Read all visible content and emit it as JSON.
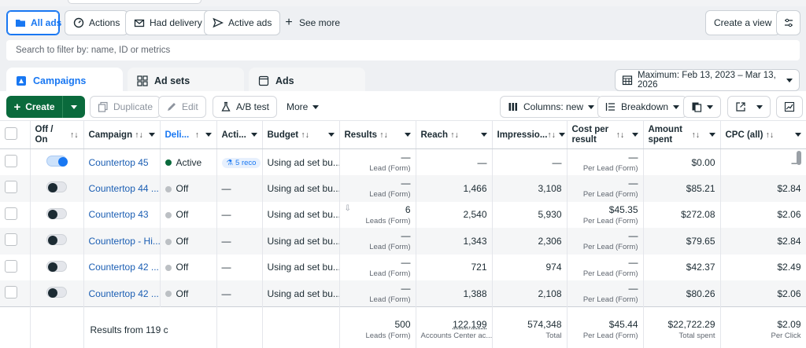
{
  "filters": {
    "all_ads": "All ads",
    "actions": "Actions",
    "had_delivery": "Had delivery",
    "active_ads": "Active ads",
    "see_more": "See more",
    "create_view": "Create a view"
  },
  "search": {
    "placeholder": "Search to filter by: name, ID or metrics"
  },
  "tabs": {
    "campaigns": "Campaigns",
    "ad_sets": "Ad sets",
    "ads": "Ads"
  },
  "date_range": "Maximum: Feb 13, 2023 – Mar 13, 2026",
  "toolbar": {
    "create": "Create",
    "duplicate": "Duplicate",
    "edit": "Edit",
    "ab_test": "A/B test",
    "more": "More",
    "columns": "Columns: new",
    "breakdown": "Breakdown"
  },
  "table": {
    "headers": {
      "off_on": "Off / On",
      "campaign": "Campaign",
      "delivery": "Deli...",
      "actions": "Acti...",
      "budget": "Budget",
      "results": "Results",
      "reach": "Reach",
      "impressions": "Impressio...",
      "cost_per_result_1": "Cost per",
      "cost_per_result_2": "result",
      "amount_spent_1": "Amount",
      "amount_spent_2": "spent",
      "cpc": "CPC (all)"
    },
    "rows": [
      {
        "campaign": "Countertop 45",
        "delivery": "Active",
        "actions": "5 reco",
        "budget": "Using ad set bu...",
        "results": "—",
        "results_sub": "Lead (Form)",
        "reach": "—",
        "impressions": "—",
        "cost": "—",
        "cost_sub": "Per Lead (Form)",
        "spent": "$0.00",
        "cpc": "—"
      },
      {
        "campaign": "Countertop 44 ...",
        "delivery": "Off",
        "actions": "—",
        "budget": "Using ad set bu...",
        "results": "—",
        "results_sub": "Lead (Form)",
        "reach": "1,466",
        "impressions": "3,108",
        "cost": "—",
        "cost_sub": "Per Lead (Form)",
        "spent": "$85.21",
        "cpc": "$2.84"
      },
      {
        "campaign": "Countertop 43",
        "delivery": "Off",
        "actions": "—",
        "budget": "Using ad set bu...",
        "results": "6",
        "results_sub": "Leads (Form)",
        "reach": "2,540",
        "impressions": "5,930",
        "cost": "$45.35",
        "cost_sub": "Per Lead (Form)",
        "spent": "$272.08",
        "cpc": "$2.06"
      },
      {
        "campaign": "Countertop - Hi...",
        "delivery": "Off",
        "actions": "—",
        "budget": "Using ad set bu...",
        "results": "—",
        "results_sub": "Lead (Form)",
        "reach": "1,343",
        "impressions": "2,306",
        "cost": "—",
        "cost_sub": "Per Lead (Form)",
        "spent": "$79.65",
        "cpc": "$2.84"
      },
      {
        "campaign": "Countertop 42 ...",
        "delivery": "Off",
        "actions": "—",
        "budget": "Using ad set bu...",
        "results": "—",
        "results_sub": "Lead (Form)",
        "reach": "721",
        "impressions": "974",
        "cost": "—",
        "cost_sub": "Per Lead (Form)",
        "spent": "$42.37",
        "cpc": "$2.49"
      },
      {
        "campaign": "Countertop 42 ...",
        "delivery": "Off",
        "actions": "—",
        "budget": "Using ad set bu...",
        "results": "—",
        "results_sub": "Lead (Form)",
        "reach": "1,388",
        "impressions": "2,108",
        "cost": "—",
        "cost_sub": "Per Lead (Form)",
        "spent": "$80.26",
        "cpc": "$2.06"
      }
    ],
    "footer": {
      "label": "Results from 119 c",
      "results": "500",
      "results_sub": "Leads (Form)",
      "reach": "122,199",
      "reach_sub": "Accounts Center ac...",
      "impressions": "574,348",
      "impressions_sub": "Total",
      "cost": "$45.44",
      "cost_sub": "Per Lead (Form)",
      "spent": "$22,722.29",
      "spent_sub": "Total spent",
      "cpc": "$2.09",
      "cpc_sub": "Per Click"
    }
  },
  "colors": {
    "accent": "#1877f2",
    "create_green": "#0a6a3c",
    "active_dot": "#0a6a3c",
    "off_dot": "#bcc0c4"
  }
}
